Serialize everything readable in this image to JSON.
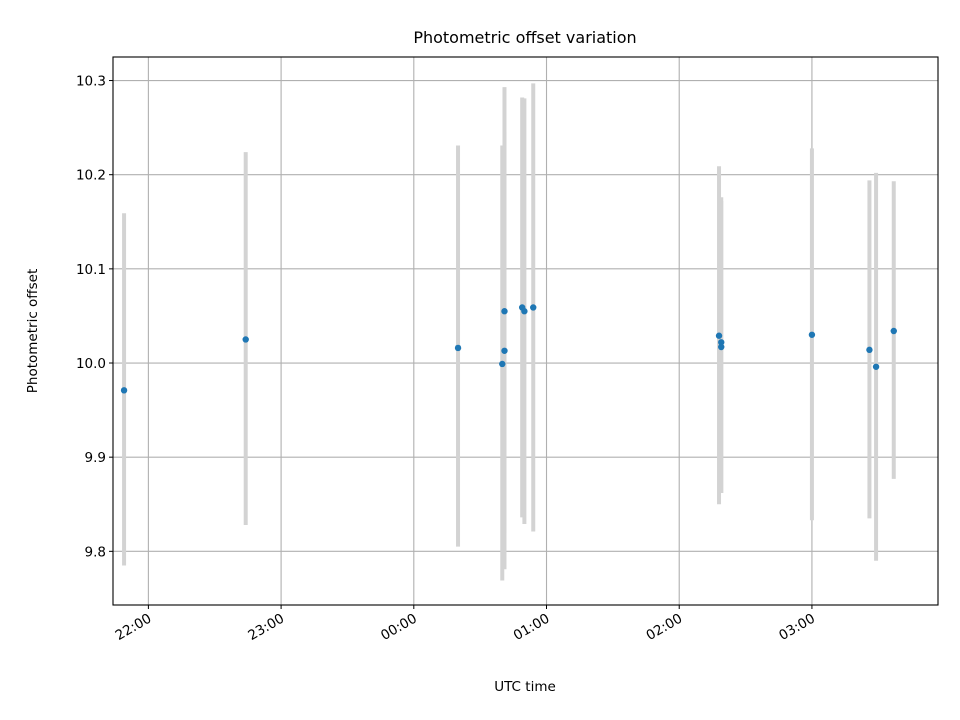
{
  "chart_data": {
    "type": "scatter",
    "title": "Photometric offset variation",
    "xlabel": "UTC time",
    "ylabel": "Photometric offset",
    "grid": true,
    "x_range": [
      "21:44",
      "03:57"
    ],
    "ylim": [
      9.743,
      10.325
    ],
    "x_ticks": [
      "22:00",
      "23:00",
      "00:00",
      "01:00",
      "02:00",
      "03:00"
    ],
    "y_ticks": [
      "9.8",
      "9.9",
      "10.0",
      "10.1",
      "10.2",
      "10.3"
    ],
    "colors": {
      "points": "#1f77b4",
      "error_bars": "#d3d3d3"
    },
    "points": [
      {
        "t": "21:49",
        "y": 9.971,
        "lo": 9.785,
        "hi": 10.159
      },
      {
        "t": "22:44",
        "y": 10.025,
        "lo": 9.828,
        "hi": 10.224
      },
      {
        "t": "00:20",
        "y": 10.016,
        "lo": 9.805,
        "hi": 10.231
      },
      {
        "t": "00:40",
        "y": 9.999,
        "lo": 9.769,
        "hi": 10.231
      },
      {
        "t": "00:41",
        "y": 10.055,
        "lo": 9.82,
        "hi": 10.293
      },
      {
        "t": "00:41",
        "y": 10.013,
        "lo": 9.781,
        "hi": 10.245
      },
      {
        "t": "00:49",
        "y": 10.059,
        "lo": 9.836,
        "hi": 10.282
      },
      {
        "t": "00:50",
        "y": 10.055,
        "lo": 9.829,
        "hi": 10.281
      },
      {
        "t": "00:54",
        "y": 10.059,
        "lo": 9.821,
        "hi": 10.297
      },
      {
        "t": "02:18",
        "y": 10.029,
        "lo": 9.85,
        "hi": 10.209
      },
      {
        "t": "02:19",
        "y": 10.022,
        "lo": 9.862,
        "hi": 10.176
      },
      {
        "t": "02:19",
        "y": 10.017,
        "lo": 9.862,
        "hi": 10.172
      },
      {
        "t": "03:00",
        "y": 10.03,
        "lo": 9.833,
        "hi": 10.228
      },
      {
        "t": "03:26",
        "y": 10.014,
        "lo": 9.835,
        "hi": 10.194
      },
      {
        "t": "03:29",
        "y": 9.996,
        "lo": 9.79,
        "hi": 10.202
      },
      {
        "t": "03:37",
        "y": 10.034,
        "lo": 9.877,
        "hi": 10.193
      }
    ]
  }
}
